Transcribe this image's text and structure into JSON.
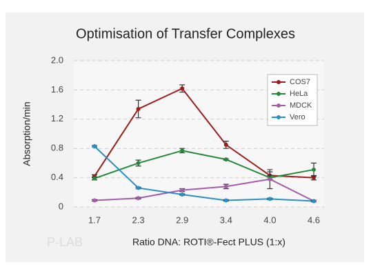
{
  "chart_data": {
    "type": "line",
    "title": "Optimisation of Transfer Complexes",
    "x_label": "Ratio DNA: ROTI®-Fect PLUS (1:x)",
    "y_label": "Absorption/min",
    "watermark": "P-LAB",
    "categories": [
      "1.7",
      "2.3",
      "2.9",
      "3.4",
      "4.0",
      "4.6"
    ],
    "ylim": [
      0,
      2
    ],
    "yticks": [
      0,
      {
        "value": 0.4,
        "label": "0.4"
      },
      {
        "value": 0.8,
        "label": "0.8"
      },
      {
        "value": 1.2,
        "label": "1.2"
      },
      {
        "value": 1.6,
        "label": "1.6"
      },
      {
        "value": 2,
        "label": "2.0"
      }
    ],
    "grid": true,
    "legend": "upper right",
    "series": [
      {
        "name": "COS7",
        "color": "#a01c1c",
        "values": [
          0.42,
          1.34,
          1.62,
          0.85,
          0.43,
          0.4
        ],
        "errors": [
          0.02,
          0.12,
          0.05,
          0.05,
          0.05,
          0.03
        ]
      },
      {
        "name": "HeLa",
        "color": "#23893a",
        "values": [
          0.39,
          0.6,
          0.77,
          0.65,
          0.4,
          0.51
        ],
        "errors": [
          0.02,
          0.04,
          0.03,
          0.01,
          0.03,
          0.09
        ]
      },
      {
        "name": "MDCK",
        "color": "#a45ca8",
        "values": [
          0.09,
          0.12,
          0.23,
          0.28,
          0.38,
          0.08
        ],
        "errors": [
          0.01,
          0.01,
          0.02,
          0.03,
          0.13,
          0.01
        ]
      },
      {
        "name": "Vero",
        "color": "#2a8fc4",
        "values": [
          0.83,
          0.26,
          0.17,
          0.09,
          0.11,
          0.08
        ],
        "errors": [
          0.01,
          0.01,
          0.01,
          0.01,
          0.01,
          0.01
        ]
      }
    ]
  }
}
